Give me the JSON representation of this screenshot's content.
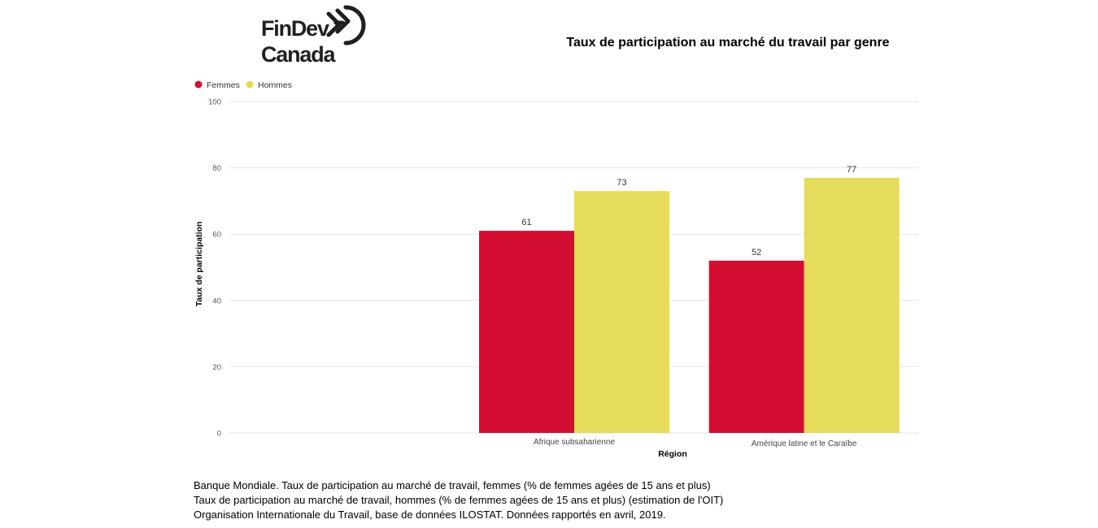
{
  "logo": {
    "line1": "FinDev",
    "line2": "Canada"
  },
  "colors": {
    "femmes": "#d40e33",
    "hommes": "#e4dc5a",
    "grid": "#e6e6e6",
    "logo": "#231f20"
  },
  "chart_data": {
    "type": "bar",
    "title": "Taux de participation au marché du travail par genre",
    "xlabel": "Région",
    "ylabel": "Taux de participation",
    "ylim": [
      0,
      100
    ],
    "yticks": [
      0,
      20,
      40,
      60,
      80,
      100
    ],
    "grid": true,
    "legend_position": "top-left",
    "categories": [
      "",
      "Afrique subsaharienne",
      "Amérique latine et le Caraïbe"
    ],
    "series": [
      {
        "name": "Femmes",
        "values": [
          null,
          61,
          52
        ],
        "labels": [
          "",
          "61",
          "52"
        ]
      },
      {
        "name": "Hommes",
        "values": [
          null,
          73,
          77
        ],
        "labels": [
          "",
          "73",
          "77"
        ]
      }
    ]
  },
  "source_lines": [
    "Banque Mondiale. Taux de participation au marché de travail, femmes (% de femmes agées de 15 ans et plus)",
    "Taux de participation au marché de travail, hommes (% de femmes agées de 15 ans et plus) (estimation de l'OIT)",
    "Organisation Internationale du Travail, base de données ILOSTAT. Données rapportés en avril, 2019."
  ]
}
